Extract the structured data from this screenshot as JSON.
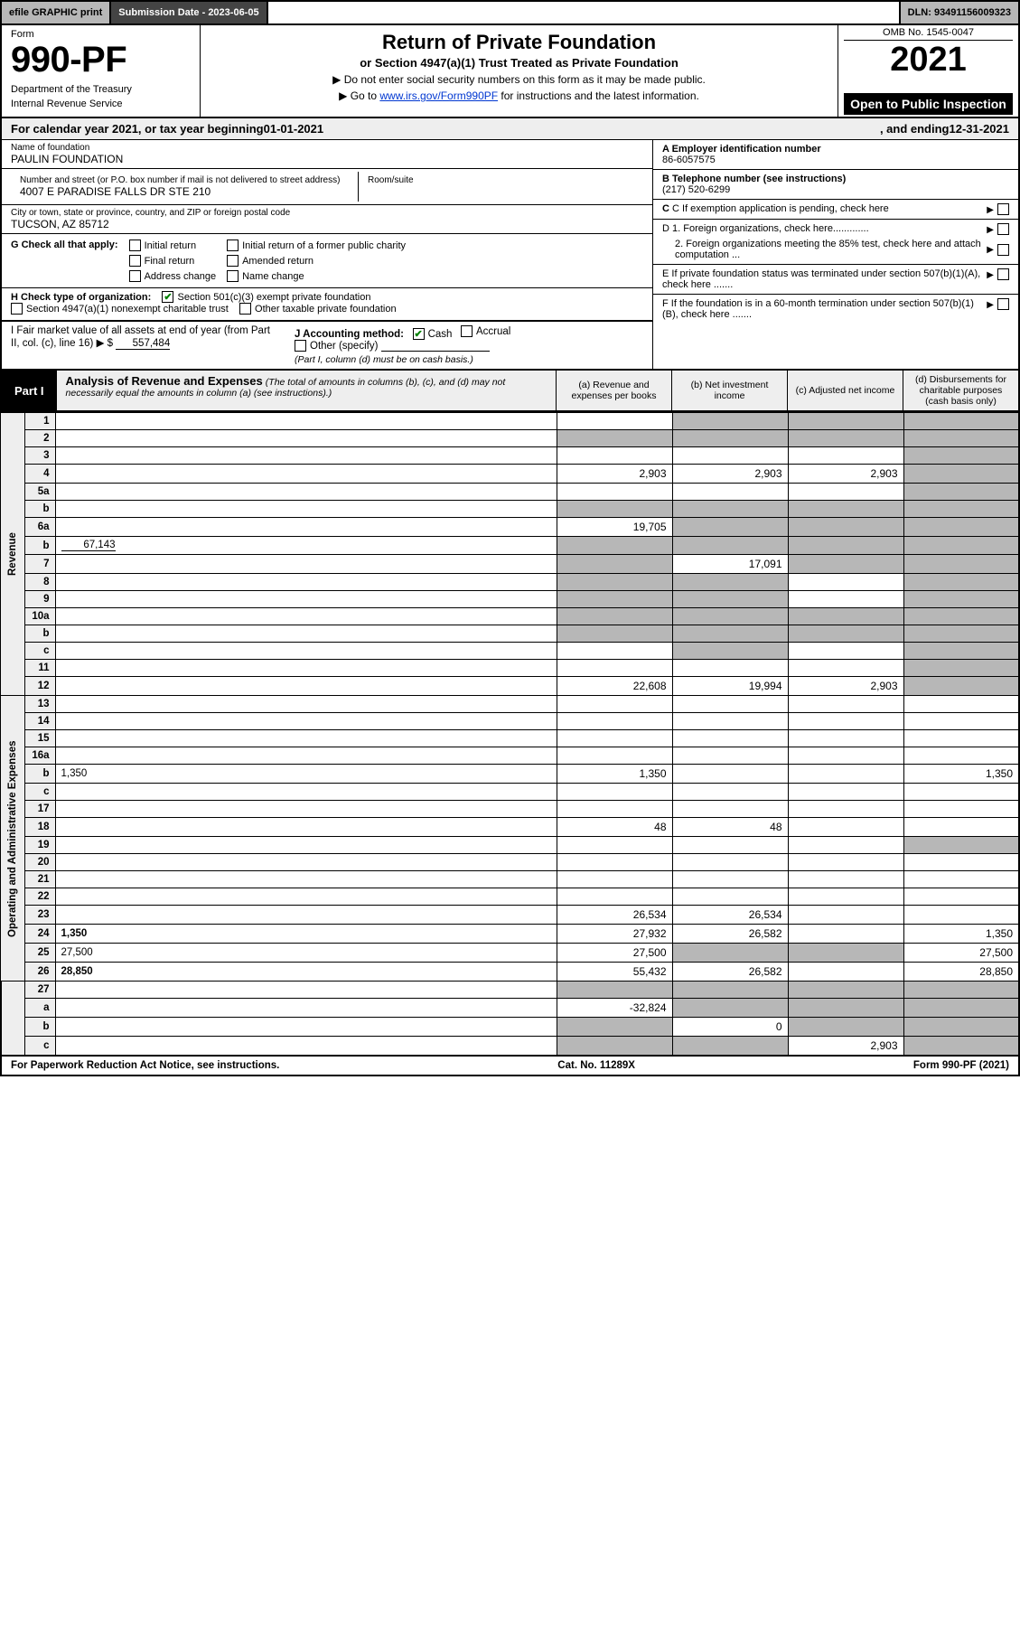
{
  "colors": {
    "grey_header": "#b7b7b7",
    "dark_grey": "#444444",
    "light_grey": "#eeeeee",
    "black": "#000000",
    "link": "#0037d1",
    "check_green": "#008000"
  },
  "topbar": {
    "efile": "efile GRAPHIC print",
    "submission": "Submission Date - 2023-06-05",
    "dln": "DLN: 93491156009323"
  },
  "header": {
    "form_word": "Form",
    "form_number": "990-PF",
    "dept1": "Department of the Treasury",
    "dept2": "Internal Revenue Service",
    "title": "Return of Private Foundation",
    "subtitle": "or Section 4947(a)(1) Trust Treated as Private Foundation",
    "note1": "▶ Do not enter social security numbers on this form as it may be made public.",
    "note2_pre": "▶ Go to ",
    "note2_link": "www.irs.gov/Form990PF",
    "note2_post": " for instructions and the latest information.",
    "omb": "OMB No. 1545-0047",
    "year": "2021",
    "open": "Open to Public Inspection"
  },
  "calyear": {
    "pre": "For calendar year 2021, or tax year beginning ",
    "begin": "01-01-2021",
    "mid": " , and ending ",
    "end": "12-31-2021"
  },
  "entity": {
    "name_lbl": "Name of foundation",
    "name": "PAULIN FOUNDATION",
    "addr_lbl": "Number and street (or P.O. box number if mail is not delivered to street address)",
    "addr": "4007 E PARADISE FALLS DR STE 210",
    "room_lbl": "Room/suite",
    "room": "",
    "city_lbl": "City or town, state or province, country, and ZIP or foreign postal code",
    "city": "TUCSON, AZ  85712",
    "a_lbl": "A Employer identification number",
    "a_val": "86-6057575",
    "b_lbl": "B Telephone number (see instructions)",
    "b_val": "(217) 520-6299",
    "c_lbl": "C If exemption application is pending, check here",
    "d1_lbl": "D 1. Foreign organizations, check here.............",
    "d2_lbl": "2. Foreign organizations meeting the 85% test, check here and attach computation ...",
    "e_lbl": "E  If private foundation status was terminated under section 507(b)(1)(A), check here .......",
    "f_lbl": "F  If the foundation is in a 60-month termination under section 507(b)(1)(B), check here .......",
    "g_lbl": "G Check all that apply:",
    "g_opts": [
      "Initial return",
      "Final return",
      "Address change",
      "Initial return of a former public charity",
      "Amended return",
      "Name change"
    ],
    "h_lbl": "H Check type of organization:",
    "h_opt1": "Section 501(c)(3) exempt private foundation",
    "h_opt2": "Section 4947(a)(1) nonexempt charitable trust",
    "h_opt3": "Other taxable private foundation",
    "i_lbl": "I Fair market value of all assets at end of year (from Part II, col. (c), line 16)",
    "i_val": "557,484",
    "i_prefix": "▶ $",
    "j_lbl": "J Accounting method:",
    "j_opts": [
      "Cash",
      "Accrual",
      "Other (specify)"
    ],
    "j_note": "(Part I, column (d) must be on cash basis.)"
  },
  "part1": {
    "label": "Part I",
    "title": "Analysis of Revenue and Expenses",
    "note": "(The total of amounts in columns (b), (c), and (d) may not necessarily equal the amounts in column (a) (see instructions).)",
    "col_a": "(a)   Revenue and expenses per books",
    "col_b": "(b)   Net investment income",
    "col_c": "(c)   Adjusted net income",
    "col_d": "(d)   Disbursements for charitable purposes (cash basis only)"
  },
  "sidebars": {
    "revenue": "Revenue",
    "expenses": "Operating and Administrative Expenses"
  },
  "rows": {
    "1": {
      "n": "1",
      "d": "",
      "a": "",
      "b": "",
      "c": "",
      "sh": [
        "b",
        "c",
        "d"
      ]
    },
    "2": {
      "n": "2",
      "d": "",
      "a": "",
      "b": "",
      "c": "",
      "sh": [
        "a",
        "b",
        "c",
        "d"
      ]
    },
    "3": {
      "n": "3",
      "d": "",
      "a": "",
      "b": "",
      "c": "",
      "sh": [
        "d"
      ]
    },
    "4": {
      "n": "4",
      "d": "",
      "a": "2,903",
      "b": "2,903",
      "c": "2,903",
      "sh": [
        "d"
      ]
    },
    "5a": {
      "n": "5a",
      "d": "",
      "a": "",
      "b": "",
      "c": "",
      "sh": [
        "d"
      ]
    },
    "5b": {
      "n": "b",
      "d": "",
      "a": "",
      "b": "",
      "c": "",
      "sh": [
        "a",
        "b",
        "c",
        "d"
      ]
    },
    "6a": {
      "n": "6a",
      "d": "",
      "a": "19,705",
      "b": "",
      "c": "",
      "sh": [
        "b",
        "c",
        "d"
      ]
    },
    "6b": {
      "n": "b",
      "d": "",
      "inline": "67,143",
      "a": "",
      "b": "",
      "c": "",
      "sh": [
        "a",
        "b",
        "c",
        "d"
      ]
    },
    "7": {
      "n": "7",
      "d": "",
      "a": "",
      "b": "17,091",
      "c": "",
      "sh": [
        "a",
        "c",
        "d"
      ]
    },
    "8": {
      "n": "8",
      "d": "",
      "a": "",
      "b": "",
      "c": "",
      "sh": [
        "a",
        "b",
        "d"
      ]
    },
    "9": {
      "n": "9",
      "d": "",
      "a": "",
      "b": "",
      "c": "",
      "sh": [
        "a",
        "b",
        "d"
      ]
    },
    "10a": {
      "n": "10a",
      "d": "",
      "a": "",
      "b": "",
      "c": "",
      "sh": [
        "a",
        "b",
        "c",
        "d"
      ]
    },
    "10b": {
      "n": "b",
      "d": "",
      "a": "",
      "b": "",
      "c": "",
      "sh": [
        "a",
        "b",
        "c",
        "d"
      ]
    },
    "10c": {
      "n": "c",
      "d": "",
      "a": "",
      "b": "",
      "c": "",
      "sh": [
        "b",
        "d"
      ]
    },
    "11": {
      "n": "11",
      "d": "",
      "a": "",
      "b": "",
      "c": "",
      "sh": [
        "d"
      ]
    },
    "12": {
      "n": "12",
      "d": "",
      "a": "22,608",
      "b": "19,994",
      "c": "2,903",
      "bold": true,
      "sh": [
        "d"
      ]
    },
    "13": {
      "n": "13",
      "d": "",
      "a": "",
      "b": "",
      "c": ""
    },
    "14": {
      "n": "14",
      "d": "",
      "a": "",
      "b": "",
      "c": ""
    },
    "15": {
      "n": "15",
      "d": "",
      "a": "",
      "b": "",
      "c": ""
    },
    "16a": {
      "n": "16a",
      "d": "",
      "a": "",
      "b": "",
      "c": ""
    },
    "16b": {
      "n": "b",
      "d": "1,350",
      "a": "1,350",
      "b": "",
      "c": ""
    },
    "16c": {
      "n": "c",
      "d": "",
      "a": "",
      "b": "",
      "c": ""
    },
    "17": {
      "n": "17",
      "d": "",
      "a": "",
      "b": "",
      "c": ""
    },
    "18": {
      "n": "18",
      "d": "",
      "a": "48",
      "b": "48",
      "c": ""
    },
    "19": {
      "n": "19",
      "d": "",
      "a": "",
      "b": "",
      "c": "",
      "sh": [
        "d"
      ]
    },
    "20": {
      "n": "20",
      "d": "",
      "a": "",
      "b": "",
      "c": ""
    },
    "21": {
      "n": "21",
      "d": "",
      "a": "",
      "b": "",
      "c": ""
    },
    "22": {
      "n": "22",
      "d": "",
      "a": "",
      "b": "",
      "c": ""
    },
    "23": {
      "n": "23",
      "d": "",
      "a": "26,534",
      "b": "26,534",
      "c": ""
    },
    "24": {
      "n": "24",
      "d": "1,350",
      "a": "27,932",
      "b": "26,582",
      "c": "",
      "bold": true
    },
    "25": {
      "n": "25",
      "d": "27,500",
      "a": "27,500",
      "b": "",
      "c": "",
      "sh": [
        "b",
        "c"
      ]
    },
    "26": {
      "n": "26",
      "d": "28,850",
      "a": "55,432",
      "b": "26,582",
      "c": "",
      "bold": true
    },
    "27": {
      "n": "27",
      "d": "",
      "a": "",
      "b": "",
      "c": "",
      "sh": [
        "a",
        "b",
        "c",
        "d"
      ]
    },
    "27a": {
      "n": "a",
      "d": "",
      "a": "-32,824",
      "b": "",
      "c": "",
      "bold": true,
      "sh": [
        "b",
        "c",
        "d"
      ]
    },
    "27b": {
      "n": "b",
      "d": "",
      "a": "",
      "b": "0",
      "c": "",
      "bold": true,
      "sh": [
        "a",
        "c",
        "d"
      ]
    },
    "27c": {
      "n": "c",
      "d": "",
      "a": "",
      "b": "",
      "c": "2,903",
      "bold": true,
      "sh": [
        "a",
        "b",
        "d"
      ]
    }
  },
  "row_order_rev": [
    "1",
    "2",
    "3",
    "4",
    "5a",
    "5b",
    "6a",
    "6b",
    "7",
    "8",
    "9",
    "10a",
    "10b",
    "10c",
    "11",
    "12"
  ],
  "row_order_exp": [
    "13",
    "14",
    "15",
    "16a",
    "16b",
    "16c",
    "17",
    "18",
    "19",
    "20",
    "21",
    "22",
    "23",
    "24",
    "25",
    "26"
  ],
  "row_order_tail": [
    "27",
    "27a",
    "27b",
    "27c"
  ],
  "footer": {
    "pra": "For Paperwork Reduction Act Notice, see instructions.",
    "cat": "Cat. No. 11289X",
    "form": "Form 990-PF (2021)"
  }
}
